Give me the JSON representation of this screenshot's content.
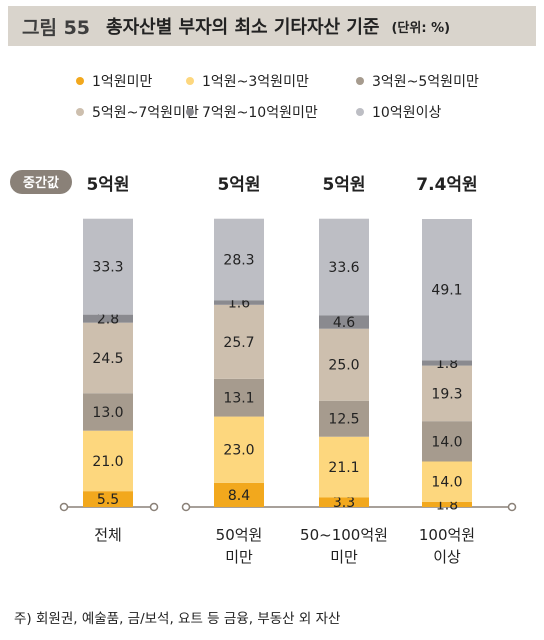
{
  "title": {
    "figure_label": "그림 55",
    "text": "총자산별 부자의 최소 기타자산 기준",
    "unit": "(단위: %)"
  },
  "median_label": "중간값",
  "footnote": "주) 회원권, 예술품, 금/보석, 요트 등 금융, 부동산 외 자산",
  "colors": {
    "1억원미만": "#f2a81d",
    "1억원~3억원미만": "#fdd77e",
    "3억원~5억원미만": "#a69b8e",
    "5억원~7억원미만": "#cdbfae",
    "7억원~10억원미만": "#8a8a8f",
    "10억원이상": "#bdbec4",
    "median_badge": "#8a8178",
    "title_bar": "#d9d4cc"
  },
  "chart_data": {
    "type": "bar",
    "stacked": true,
    "legend_position": "top",
    "categories": [
      "전체",
      "50억원\n미만",
      "50~100억원\n미만",
      "100억원\n이상"
    ],
    "medians": [
      "5억원",
      "5억원",
      "5억원",
      "7.4억원"
    ],
    "series": [
      {
        "name": "1억원미만",
        "values": [
          5.5,
          8.4,
          3.3,
          1.8
        ]
      },
      {
        "name": "1억원~3억원미만",
        "values": [
          21.0,
          23.0,
          21.1,
          14.0
        ]
      },
      {
        "name": "3억원~5억원미만",
        "values": [
          13.0,
          13.1,
          12.5,
          14.0
        ]
      },
      {
        "name": "5억원~7억원미만",
        "values": [
          24.5,
          25.7,
          25.0,
          19.3
        ]
      },
      {
        "name": "7억원~10억원미만",
        "values": [
          2.8,
          1.6,
          4.6,
          1.8
        ]
      },
      {
        "name": "10억원이상",
        "values": [
          33.3,
          28.3,
          33.6,
          49.1
        ]
      }
    ],
    "data_labels": [
      [
        "5.5",
        "8.4",
        "3.3",
        "1.8"
      ],
      [
        "21.0",
        "23.0",
        "21.1",
        "14.0"
      ],
      [
        "13.0",
        "13.1",
        "12.5",
        "14.0"
      ],
      [
        "24.5",
        "25.7",
        "25.0",
        "19.3"
      ],
      [
        "2.8",
        "1.6",
        "4.6",
        "1.8"
      ],
      [
        "33.3",
        "28.3",
        "33.6",
        "49.1"
      ]
    ]
  }
}
